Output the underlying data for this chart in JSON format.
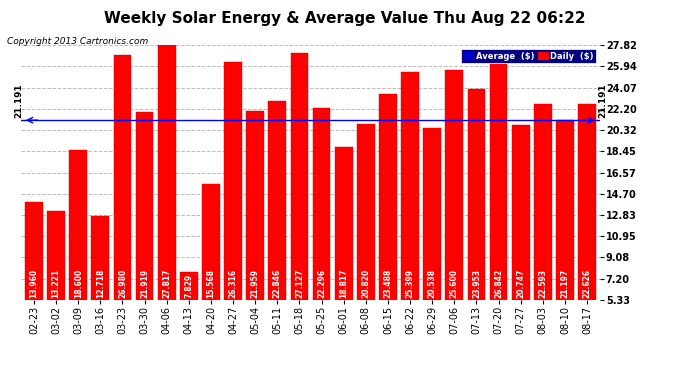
{
  "title": "Weekly Solar Energy & Average Value Thu Aug 22 06:22",
  "copyright": "Copyright 2013 Cartronics.com",
  "categories": [
    "02-23",
    "03-02",
    "03-09",
    "03-16",
    "03-23",
    "03-30",
    "04-06",
    "04-13",
    "04-20",
    "04-27",
    "05-04",
    "05-11",
    "05-18",
    "05-25",
    "06-01",
    "06-08",
    "06-15",
    "06-22",
    "06-29",
    "07-06",
    "07-13",
    "07-20",
    "07-27",
    "08-03",
    "08-10",
    "08-17"
  ],
  "values": [
    13.96,
    13.221,
    18.6,
    12.718,
    26.98,
    21.919,
    27.817,
    7.829,
    15.568,
    26.316,
    21.959,
    22.846,
    27.127,
    22.296,
    18.817,
    20.82,
    23.488,
    25.399,
    20.538,
    25.6,
    23.953,
    26.842,
    20.747,
    22.593,
    21.197,
    22.626
  ],
  "average_value": 21.191,
  "bar_color": "#ff0000",
  "bar_edge_color": "#cc0000",
  "average_line_color": "#0000ff",
  "background_color": "#ffffff",
  "plot_bg_color": "#ffffff",
  "yticks": [
    5.33,
    7.2,
    9.08,
    10.95,
    12.83,
    14.7,
    16.57,
    18.45,
    20.32,
    22.2,
    24.07,
    25.94,
    27.82
  ],
  "ymin": 5.33,
  "ymax": 27.82,
  "grid_color": "#bbbbbb",
  "legend_avg_color": "#0000cc",
  "legend_daily_color": "#ff0000",
  "title_fontsize": 11,
  "copyright_fontsize": 6.5,
  "bar_label_fontsize": 5.5,
  "tick_fontsize": 7,
  "avg_label": "21.191",
  "avg_label_fontsize": 6.5
}
